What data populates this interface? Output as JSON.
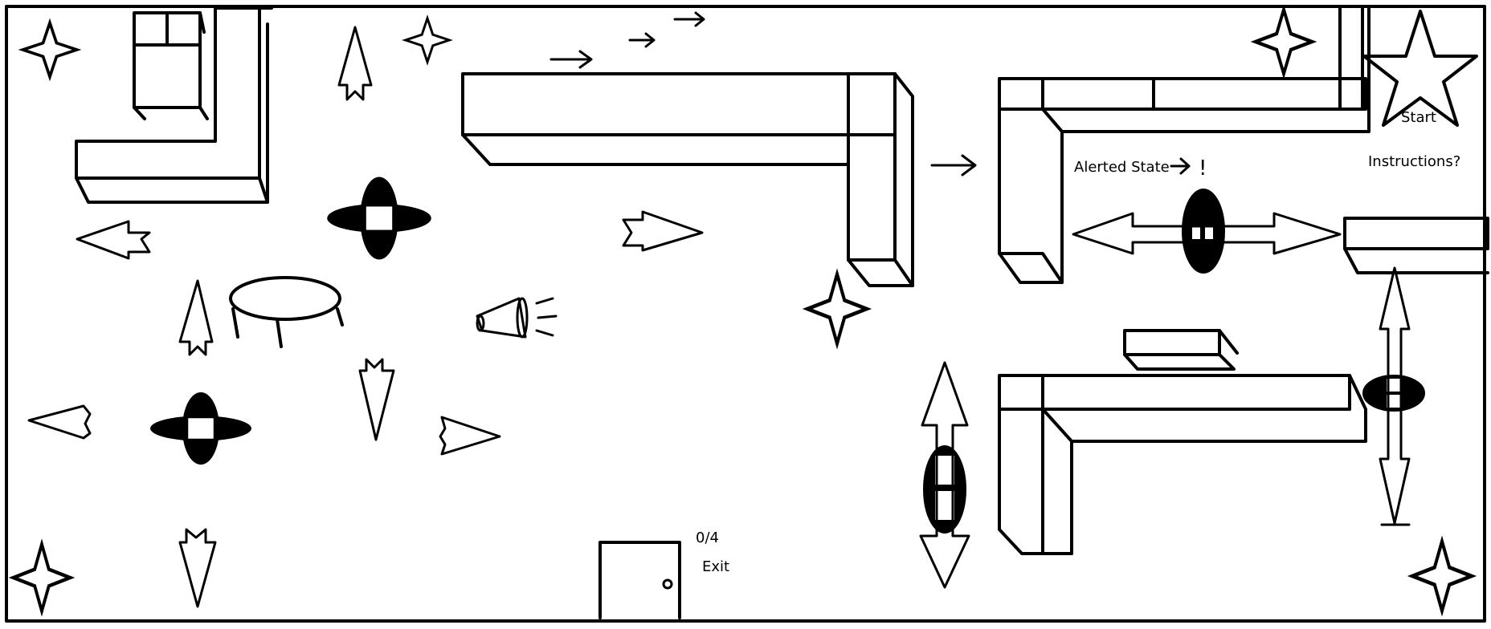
{
  "hud": {
    "collected": "0/4",
    "exit_label": "Exit",
    "alert_label": "Alerted State",
    "alert_symbol": "!"
  },
  "menu": {
    "start_label": "Start",
    "instructions_label": "Instructions?"
  },
  "icons": {
    "collectible": "four-point-star-icon",
    "start": "five-point-star-icon",
    "guard": "guard-icon",
    "megaphone": "megaphone-icon",
    "door": "door-icon",
    "patrol_arrow": "arrow-icon"
  },
  "colors": {
    "ink": "#000000",
    "background": "#ffffff"
  }
}
